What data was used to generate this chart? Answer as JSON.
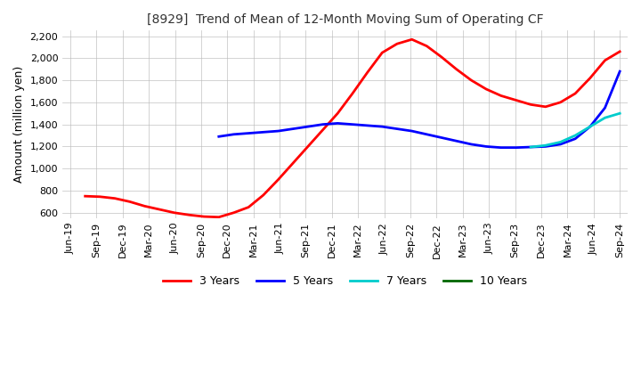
{
  "title": "[8929]  Trend of Mean of 12-Month Moving Sum of Operating CF",
  "ylabel": "Amount (million yen)",
  "ylim": [
    550,
    2250
  ],
  "yticks": [
    600,
    800,
    1000,
    1200,
    1400,
    1600,
    1800,
    2000,
    2200
  ],
  "background_color": "#ffffff",
  "grid_color": "#bbbbbb",
  "x_labels": [
    "Jun-19",
    "Sep-19",
    "Dec-19",
    "Mar-20",
    "Jun-20",
    "Sep-20",
    "Dec-20",
    "Mar-21",
    "Jun-21",
    "Sep-21",
    "Dec-21",
    "Mar-22",
    "Jun-22",
    "Sep-22",
    "Dec-22",
    "Mar-23",
    "Jun-23",
    "Sep-23",
    "Dec-23",
    "Mar-24",
    "Jun-24",
    "Sep-24"
  ],
  "series": {
    "3 Years": {
      "color": "#ff0000",
      "points": [
        [
          1,
          750
        ],
        [
          2,
          745
        ],
        [
          3,
          730
        ],
        [
          4,
          700
        ],
        [
          5,
          660
        ],
        [
          6,
          630
        ],
        [
          7,
          600
        ],
        [
          8,
          580
        ],
        [
          9,
          565
        ],
        [
          10,
          560
        ],
        [
          11,
          600
        ],
        [
          12,
          650
        ],
        [
          13,
          760
        ],
        [
          14,
          900
        ],
        [
          15,
          1050
        ],
        [
          16,
          1200
        ],
        [
          17,
          1350
        ],
        [
          18,
          1500
        ],
        [
          19,
          1680
        ],
        [
          20,
          1870
        ],
        [
          21,
          2050
        ],
        [
          22,
          2130
        ],
        [
          23,
          2170
        ],
        [
          24,
          2110
        ],
        [
          25,
          2010
        ],
        [
          26,
          1900
        ],
        [
          27,
          1800
        ],
        [
          28,
          1720
        ],
        [
          29,
          1660
        ],
        [
          30,
          1620
        ],
        [
          31,
          1580
        ],
        [
          32,
          1560
        ],
        [
          33,
          1600
        ],
        [
          34,
          1680
        ],
        [
          35,
          1820
        ],
        [
          36,
          1980
        ],
        [
          37,
          2060
        ]
      ]
    },
    "5 Years": {
      "color": "#0000ff",
      "points": [
        [
          10,
          1290
        ],
        [
          11,
          1310
        ],
        [
          12,
          1320
        ],
        [
          13,
          1330
        ],
        [
          14,
          1340
        ],
        [
          15,
          1360
        ],
        [
          16,
          1380
        ],
        [
          17,
          1400
        ],
        [
          18,
          1410
        ],
        [
          19,
          1400
        ],
        [
          20,
          1390
        ],
        [
          21,
          1380
        ],
        [
          22,
          1360
        ],
        [
          23,
          1340
        ],
        [
          24,
          1310
        ],
        [
          25,
          1280
        ],
        [
          26,
          1250
        ],
        [
          27,
          1220
        ],
        [
          28,
          1200
        ],
        [
          29,
          1190
        ],
        [
          30,
          1190
        ],
        [
          31,
          1195
        ],
        [
          32,
          1200
        ],
        [
          33,
          1220
        ],
        [
          34,
          1270
        ],
        [
          35,
          1380
        ],
        [
          36,
          1550
        ],
        [
          37,
          1880
        ]
      ]
    },
    "7 Years": {
      "color": "#00cccc",
      "points": [
        [
          31,
          1195
        ],
        [
          32,
          1210
        ],
        [
          33,
          1240
        ],
        [
          34,
          1300
        ],
        [
          35,
          1380
        ],
        [
          36,
          1460
        ],
        [
          37,
          1500
        ]
      ]
    },
    "10 Years": {
      "color": "#006600",
      "points": []
    }
  },
  "legend_labels": [
    "3 Years",
    "5 Years",
    "7 Years",
    "10 Years"
  ],
  "legend_colors": [
    "#ff0000",
    "#0000ff",
    "#00cccc",
    "#006600"
  ]
}
